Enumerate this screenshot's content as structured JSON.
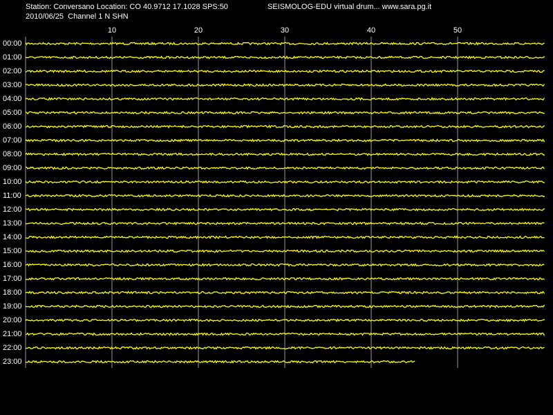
{
  "chart_data": {
    "type": "drum",
    "title": "Station: Conversano Location: CO 40.9712 17.1028 SPS:50",
    "subtitle": "2010/06/25  Channel 1 N SHN",
    "annotation": "SEISMOLOG-EDU virtual drum... www.sara.pg.it",
    "categories": [
      "00:00",
      "01:00",
      "02:00",
      "03:00",
      "04:00",
      "05:00",
      "06:00",
      "07:00",
      "08:00",
      "09:00",
      "10:00",
      "11:00",
      "12:00",
      "13:00",
      "14:00",
      "15:00",
      "16:00",
      "17:00",
      "18:00",
      "19:00",
      "20:00",
      "21:00",
      "22:00",
      "23:00"
    ],
    "values": [
      60,
      60,
      60,
      60,
      60,
      60,
      60,
      60,
      60,
      60,
      60,
      60,
      60,
      60,
      60,
      60,
      60,
      60,
      60,
      60,
      60,
      60,
      60,
      45
    ],
    "color": "#ffff00",
    "xlim": [
      0,
      60
    ],
    "xticks": [
      10,
      20,
      30,
      40,
      50
    ],
    "grid": true
  }
}
